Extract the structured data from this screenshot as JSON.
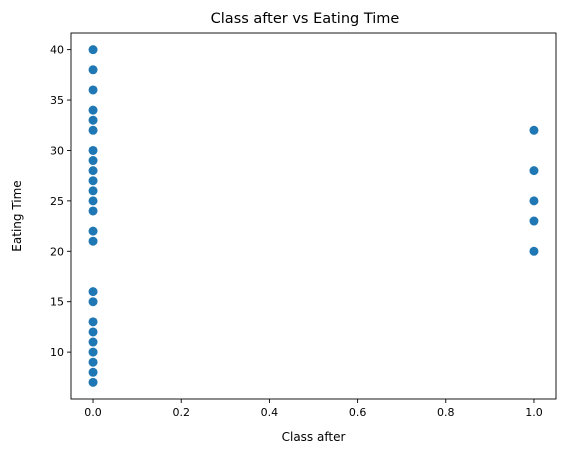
{
  "chart_data": {
    "type": "scatter",
    "title": "Class after vs Eating Time",
    "xlabel": "Class after",
    "ylabel": "Eating Time",
    "xlim": [
      -0.05,
      1.05
    ],
    "ylim": [
      5.35,
      41.65
    ],
    "xticks": [
      0.0,
      0.2,
      0.4,
      0.6,
      0.8,
      1.0
    ],
    "xtick_labels": [
      "0.0",
      "0.2",
      "0.4",
      "0.6",
      "0.8",
      "1.0"
    ],
    "yticks": [
      10,
      15,
      20,
      25,
      30,
      35,
      40
    ],
    "ytick_labels": [
      "10",
      "15",
      "20",
      "25",
      "30",
      "35",
      "40"
    ],
    "grid": false,
    "marker_color": "#1f77b4",
    "points": [
      {
        "x": 0,
        "y": 40
      },
      {
        "x": 0,
        "y": 38
      },
      {
        "x": 0,
        "y": 36
      },
      {
        "x": 0,
        "y": 34
      },
      {
        "x": 0,
        "y": 33
      },
      {
        "x": 0,
        "y": 32
      },
      {
        "x": 0,
        "y": 30
      },
      {
        "x": 0,
        "y": 29
      },
      {
        "x": 0,
        "y": 28
      },
      {
        "x": 0,
        "y": 27
      },
      {
        "x": 0,
        "y": 26
      },
      {
        "x": 0,
        "y": 25
      },
      {
        "x": 0,
        "y": 24
      },
      {
        "x": 0,
        "y": 22
      },
      {
        "x": 0,
        "y": 21
      },
      {
        "x": 0,
        "y": 16
      },
      {
        "x": 0,
        "y": 15
      },
      {
        "x": 0,
        "y": 13
      },
      {
        "x": 0,
        "y": 12
      },
      {
        "x": 0,
        "y": 11
      },
      {
        "x": 0,
        "y": 10
      },
      {
        "x": 0,
        "y": 9
      },
      {
        "x": 0,
        "y": 8
      },
      {
        "x": 0,
        "y": 7
      },
      {
        "x": 1,
        "y": 32
      },
      {
        "x": 1,
        "y": 28
      },
      {
        "x": 1,
        "y": 25
      },
      {
        "x": 1,
        "y": 23
      },
      {
        "x": 1,
        "y": 20
      }
    ]
  }
}
